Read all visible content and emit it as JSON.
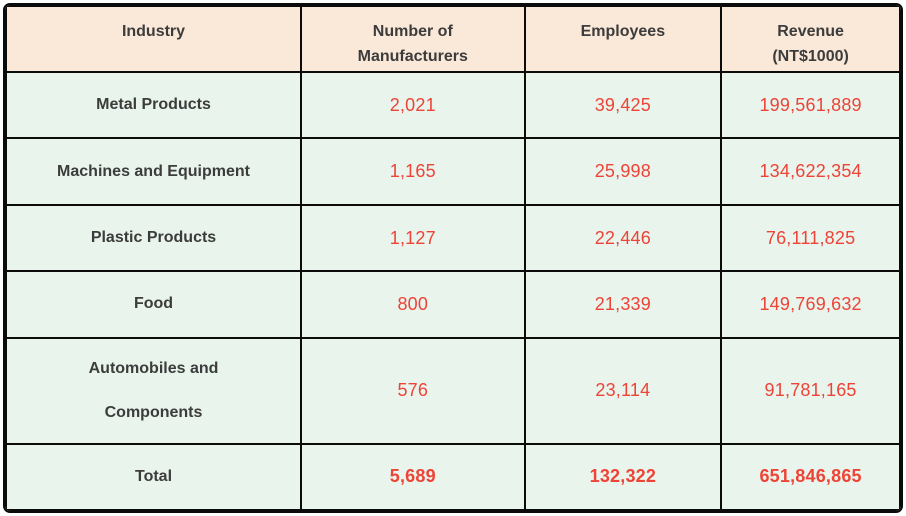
{
  "table": {
    "columns": [
      {
        "label": "Industry"
      },
      {
        "label": "Number of\nManufacturers"
      },
      {
        "label": "Employees"
      },
      {
        "label": "Revenue\n(NT$1000)"
      }
    ],
    "rows": [
      {
        "industry": "Metal Products",
        "manufacturers": "2,021",
        "employees": "39,425",
        "revenue": "199,561,889",
        "is_total": false
      },
      {
        "industry": "Machines and Equipment",
        "manufacturers": "1,165",
        "employees": "25,998",
        "revenue": "134,622,354",
        "is_total": false
      },
      {
        "industry": "Plastic Products",
        "manufacturers": "1,127",
        "employees": "22,446",
        "revenue": "76,111,825",
        "is_total": false
      },
      {
        "industry": "Food",
        "manufacturers": "800",
        "employees": "21,339",
        "revenue": "149,769,632",
        "is_total": false
      },
      {
        "industry": "Automobiles and\nComponents",
        "manufacturers": "576",
        "employees": "23,114",
        "revenue": "91,781,165",
        "is_total": false
      },
      {
        "industry": "Total",
        "manufacturers": "5,689",
        "employees": "132,322",
        "revenue": "651,846,865",
        "is_total": true
      }
    ],
    "colors": {
      "header_bg": "#fae8d8",
      "row_bg": "#e8f4ec",
      "border": "#0b0b0b",
      "value_red": "#ee4337",
      "label_dark": "#3c3c3c"
    }
  },
  "chart_data": {
    "type": "table",
    "title": "",
    "columns": [
      "Industry",
      "Number of Manufacturers",
      "Employees",
      "Revenue (NT$1000)"
    ],
    "rows": [
      [
        "Metal Products",
        2021,
        39425,
        199561889
      ],
      [
        "Machines and Equipment",
        1165,
        25998,
        134622354
      ],
      [
        "Plastic Products",
        1127,
        22446,
        76111825
      ],
      [
        "Food",
        800,
        21339,
        149769632
      ],
      [
        "Automobiles and Components",
        576,
        23114,
        91781165
      ],
      [
        "Total",
        5689,
        132322,
        651846865
      ]
    ]
  }
}
